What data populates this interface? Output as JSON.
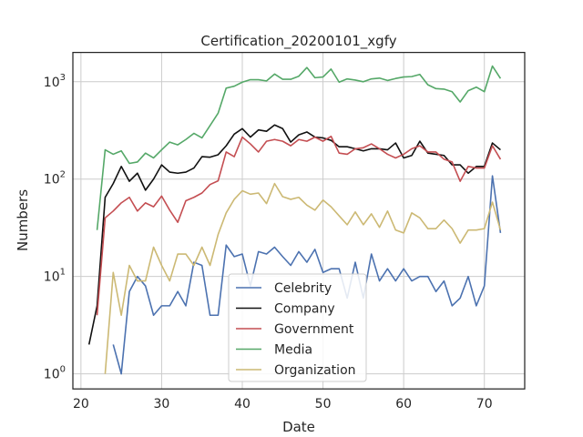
{
  "chart_data": {
    "type": "line",
    "title": "Certification_20200101_xgfy",
    "xlabel": "Date",
    "ylabel": "Numbers",
    "yscale": "log",
    "xlim": [
      19,
      75
    ],
    "ylim": [
      0.7,
      2000
    ],
    "xticks": [
      20,
      30,
      40,
      50,
      60,
      70
    ],
    "yticks": [
      {
        "value": 1,
        "label": "10",
        "exp": "0"
      },
      {
        "value": 10,
        "label": "10",
        "exp": "1"
      },
      {
        "value": 100,
        "label": "10",
        "exp": "2"
      },
      {
        "value": 1000,
        "label": "10",
        "exp": "3"
      }
    ],
    "grid": true,
    "legend_position": "bottom-center",
    "series": [
      {
        "name": "Celebrity",
        "color": "#4c72b0",
        "points": [
          [
            24,
            2
          ],
          [
            25,
            1
          ],
          [
            26,
            7
          ],
          [
            27,
            10
          ],
          [
            28,
            8
          ],
          [
            29,
            4
          ],
          [
            30,
            5
          ],
          [
            31,
            5
          ],
          [
            32,
            7
          ],
          [
            33,
            5
          ],
          [
            34,
            14
          ],
          [
            35,
            13
          ],
          [
            36,
            4
          ],
          [
            37,
            4
          ],
          [
            38,
            21
          ],
          [
            39,
            16
          ],
          [
            40,
            17
          ],
          [
            41,
            8
          ],
          [
            42,
            18
          ],
          [
            43,
            17
          ],
          [
            44,
            20
          ],
          [
            45,
            16
          ],
          [
            46,
            13
          ],
          [
            47,
            18
          ],
          [
            48,
            14
          ],
          [
            49,
            19
          ],
          [
            50,
            11
          ],
          [
            51,
            12
          ],
          [
            52,
            12
          ],
          [
            53,
            6
          ],
          [
            54,
            14
          ],
          [
            55,
            6
          ],
          [
            56,
            17
          ],
          [
            57,
            9
          ],
          [
            58,
            12
          ],
          [
            59,
            9
          ],
          [
            60,
            12
          ],
          [
            61,
            9
          ],
          [
            62,
            10
          ],
          [
            63,
            10
          ],
          [
            64,
            7
          ],
          [
            65,
            9
          ],
          [
            66,
            5
          ],
          [
            67,
            6
          ],
          [
            68,
            10
          ],
          [
            69,
            5
          ],
          [
            70,
            8
          ],
          [
            71,
            108
          ],
          [
            72,
            28
          ]
        ]
      },
      {
        "name": "Company",
        "color": "#111111",
        "points": [
          [
            21,
            2
          ],
          [
            22,
            5
          ],
          [
            23,
            65
          ],
          [
            24,
            90
          ],
          [
            25,
            135
          ],
          [
            26,
            95
          ],
          [
            27,
            115
          ],
          [
            28,
            77
          ],
          [
            29,
            100
          ],
          [
            30,
            140
          ],
          [
            31,
            118
          ],
          [
            32,
            115
          ],
          [
            33,
            118
          ],
          [
            34,
            130
          ],
          [
            35,
            170
          ],
          [
            36,
            168
          ],
          [
            37,
            178
          ],
          [
            38,
            220
          ],
          [
            39,
            290
          ],
          [
            40,
            330
          ],
          [
            41,
            270
          ],
          [
            42,
            320
          ],
          [
            43,
            310
          ],
          [
            44,
            360
          ],
          [
            45,
            330
          ],
          [
            46,
            240
          ],
          [
            47,
            285
          ],
          [
            48,
            305
          ],
          [
            49,
            270
          ],
          [
            50,
            265
          ],
          [
            51,
            250
          ],
          [
            52,
            215
          ],
          [
            53,
            215
          ],
          [
            54,
            205
          ],
          [
            55,
            195
          ],
          [
            56,
            205
          ],
          [
            57,
            205
          ],
          [
            58,
            200
          ],
          [
            59,
            235
          ],
          [
            60,
            165
          ],
          [
            61,
            175
          ],
          [
            62,
            245
          ],
          [
            63,
            185
          ],
          [
            64,
            180
          ],
          [
            65,
            175
          ],
          [
            66,
            140
          ],
          [
            67,
            140
          ],
          [
            68,
            115
          ],
          [
            69,
            135
          ],
          [
            70,
            135
          ],
          [
            71,
            235
          ],
          [
            72,
            200
          ]
        ]
      },
      {
        "name": "Government",
        "color": "#c44e52",
        "points": [
          [
            22,
            4
          ],
          [
            23,
            40
          ],
          [
            24,
            47
          ],
          [
            25,
            57
          ],
          [
            26,
            65
          ],
          [
            27,
            47
          ],
          [
            28,
            57
          ],
          [
            29,
            52
          ],
          [
            30,
            67
          ],
          [
            31,
            48
          ],
          [
            32,
            36
          ],
          [
            33,
            60
          ],
          [
            34,
            65
          ],
          [
            35,
            72
          ],
          [
            36,
            88
          ],
          [
            37,
            96
          ],
          [
            38,
            190
          ],
          [
            39,
            170
          ],
          [
            40,
            270
          ],
          [
            41,
            230
          ],
          [
            42,
            190
          ],
          [
            43,
            245
          ],
          [
            44,
            255
          ],
          [
            45,
            245
          ],
          [
            46,
            220
          ],
          [
            47,
            255
          ],
          [
            48,
            245
          ],
          [
            49,
            270
          ],
          [
            50,
            245
          ],
          [
            51,
            275
          ],
          [
            52,
            185
          ],
          [
            53,
            180
          ],
          [
            54,
            205
          ],
          [
            55,
            210
          ],
          [
            56,
            230
          ],
          [
            57,
            205
          ],
          [
            58,
            180
          ],
          [
            59,
            165
          ],
          [
            60,
            180
          ],
          [
            61,
            205
          ],
          [
            62,
            220
          ],
          [
            63,
            190
          ],
          [
            64,
            190
          ],
          [
            65,
            160
          ],
          [
            66,
            150
          ],
          [
            67,
            95
          ],
          [
            68,
            135
          ],
          [
            69,
            130
          ],
          [
            70,
            130
          ],
          [
            71,
            220
          ],
          [
            72,
            160
          ]
        ]
      },
      {
        "name": "Media",
        "color": "#55a868",
        "points": [
          [
            22,
            30
          ],
          [
            23,
            200
          ],
          [
            24,
            180
          ],
          [
            25,
            195
          ],
          [
            26,
            145
          ],
          [
            27,
            150
          ],
          [
            28,
            185
          ],
          [
            29,
            165
          ],
          [
            30,
            200
          ],
          [
            31,
            240
          ],
          [
            32,
            225
          ],
          [
            33,
            255
          ],
          [
            34,
            295
          ],
          [
            35,
            265
          ],
          [
            36,
            355
          ],
          [
            37,
            475
          ],
          [
            38,
            860
          ],
          [
            39,
            900
          ],
          [
            40,
            990
          ],
          [
            41,
            1050
          ],
          [
            42,
            1050
          ],
          [
            43,
            1020
          ],
          [
            44,
            1200
          ],
          [
            45,
            1060
          ],
          [
            46,
            1060
          ],
          [
            47,
            1140
          ],
          [
            48,
            1400
          ],
          [
            49,
            1100
          ],
          [
            50,
            1120
          ],
          [
            51,
            1350
          ],
          [
            52,
            990
          ],
          [
            53,
            1070
          ],
          [
            54,
            1040
          ],
          [
            55,
            1000
          ],
          [
            56,
            1070
          ],
          [
            57,
            1090
          ],
          [
            58,
            1030
          ],
          [
            59,
            1080
          ],
          [
            60,
            1120
          ],
          [
            61,
            1130
          ],
          [
            62,
            1190
          ],
          [
            63,
            930
          ],
          [
            64,
            850
          ],
          [
            65,
            840
          ],
          [
            66,
            790
          ],
          [
            67,
            620
          ],
          [
            68,
            810
          ],
          [
            69,
            880
          ],
          [
            70,
            790
          ],
          [
            71,
            1450
          ],
          [
            72,
            1080
          ]
        ]
      },
      {
        "name": "Organization",
        "color": "#ccb974",
        "points": [
          [
            23,
            1
          ],
          [
            24,
            11
          ],
          [
            25,
            4
          ],
          [
            26,
            13
          ],
          [
            27,
            9
          ],
          [
            28,
            9
          ],
          [
            29,
            20
          ],
          [
            30,
            13
          ],
          [
            31,
            9
          ],
          [
            32,
            17
          ],
          [
            33,
            17
          ],
          [
            34,
            13
          ],
          [
            35,
            20
          ],
          [
            36,
            13
          ],
          [
            37,
            27
          ],
          [
            38,
            45
          ],
          [
            39,
            62
          ],
          [
            40,
            76
          ],
          [
            41,
            70
          ],
          [
            42,
            72
          ],
          [
            43,
            56
          ],
          [
            44,
            90
          ],
          [
            45,
            66
          ],
          [
            46,
            62
          ],
          [
            47,
            65
          ],
          [
            48,
            54
          ],
          [
            49,
            48
          ],
          [
            50,
            61
          ],
          [
            51,
            52
          ],
          [
            52,
            42
          ],
          [
            53,
            34
          ],
          [
            54,
            46
          ],
          [
            55,
            34
          ],
          [
            56,
            44
          ],
          [
            57,
            32
          ],
          [
            58,
            47
          ],
          [
            59,
            30
          ],
          [
            60,
            28
          ],
          [
            61,
            45
          ],
          [
            62,
            40
          ],
          [
            63,
            31
          ],
          [
            64,
            31
          ],
          [
            65,
            38
          ],
          [
            66,
            31
          ],
          [
            67,
            22
          ],
          [
            68,
            30
          ],
          [
            69,
            30
          ],
          [
            70,
            31
          ],
          [
            71,
            58
          ],
          [
            72,
            30
          ]
        ]
      }
    ]
  }
}
